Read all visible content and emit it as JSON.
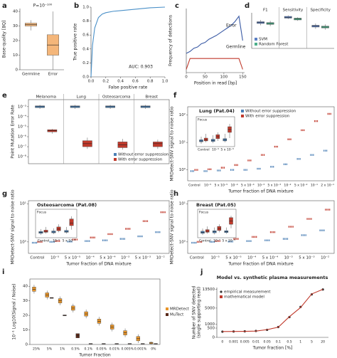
{
  "chart_data": [
    {
      "type": "box",
      "label": "a",
      "ylabel": "Base-quality [BQ]",
      "annotations": [
        "P=10⁻¹⁰⁰"
      ],
      "categories": [
        "Germline",
        "Error"
      ],
      "ylim": [
        0,
        42
      ],
      "yticks": [
        0,
        10,
        20,
        30,
        40
      ],
      "series": [
        {
          "color": "#f4b67a",
          "min": [
            27,
            0
          ],
          "q1": [
            30,
            10
          ],
          "median": [
            31,
            17
          ],
          "q3": [
            32,
            24
          ],
          "max": [
            34,
            40
          ]
        }
      ]
    },
    {
      "type": "line",
      "label": "b",
      "xlabel": "False positive rate",
      "ylabel": "True positive rate",
      "annotations": [
        "AUC: 0.903"
      ],
      "x": [
        0,
        0.02,
        0.05,
        0.1,
        0.15,
        0.2,
        0.3,
        0.4,
        0.6,
        0.8,
        1.0
      ],
      "series": [
        {
          "color": "#4a90c8",
          "values": [
            0,
            0.45,
            0.7,
            0.85,
            0.9,
            0.92,
            0.94,
            0.95,
            0.97,
            0.99,
            1.0
          ]
        }
      ],
      "xlim": [
        0,
        1
      ],
      "ylim": [
        0,
        1
      ],
      "xticks": [
        {
          "value": 0,
          "label": "0.0"
        },
        0.2,
        0.4,
        0.6,
        0.8,
        {
          "value": 1,
          "label": "1.0"
        }
      ],
      "yticks": [
        {
          "value": 0,
          "label": "0.0"
        },
        0.2,
        0.4,
        0.6,
        0.8,
        {
          "value": 1,
          "label": "1.0"
        }
      ]
    },
    {
      "type": "line",
      "label": "c",
      "xlabel": "Position in read [bp]",
      "ylabel": "Frequency of detections",
      "legend": "inline",
      "x": [
        0,
        10,
        20,
        30,
        40,
        50,
        60,
        70,
        80,
        90,
        100,
        110,
        120,
        130,
        140,
        150
      ],
      "series": [
        {
          "name": "Error",
          "color": "#3b5ba5",
          "values": [
            0.3,
            0.33,
            0.38,
            0.4,
            0.45,
            0.47,
            0.52,
            0.55,
            0.58,
            0.62,
            0.66,
            0.7,
            0.74,
            0.8,
            0.88,
            0.5
          ]
        },
        {
          "name": "Germline",
          "color": "#c0392b",
          "values": [
            0.05,
            0.22,
            0.22,
            0.22,
            0.22,
            0.22,
            0.22,
            0.22,
            0.22,
            0.22,
            0.22,
            0.22,
            0.22,
            0.22,
            0.22,
            0.05
          ]
        }
      ],
      "xlim": [
        0,
        155
      ],
      "ylim": [
        0,
        1
      ],
      "xticks": [
        0,
        50,
        100,
        150
      ]
    },
    {
      "type": "box",
      "label": "d",
      "legend": "lower left",
      "categories": [
        "F1",
        "Sensitivity",
        "Specificity"
      ],
      "ylim": [
        0.6,
        1
      ],
      "series": [
        {
          "name": "SVM",
          "color": "#5b7fc4",
          "min": [
            0.86,
            0.93,
            0.82
          ],
          "q1": [
            0.88,
            0.94,
            0.84
          ],
          "median": [
            0.89,
            0.95,
            0.85
          ],
          "q3": [
            0.9,
            0.96,
            0.86
          ],
          "max": [
            0.92,
            0.97,
            0.88
          ]
        },
        {
          "name": "Random Forest",
          "color": "#4caf8a",
          "min": [
            0.85,
            0.91,
            0.81
          ],
          "q1": [
            0.87,
            0.92,
            0.83
          ],
          "median": [
            0.88,
            0.93,
            0.84
          ],
          "q3": [
            0.89,
            0.94,
            0.85
          ],
          "max": [
            0.91,
            0.95,
            0.87
          ]
        }
      ]
    },
    {
      "type": "box",
      "label": "e",
      "ylabel": "Point Mutation Error Rate",
      "legend": "lower right",
      "yscale": "log",
      "categories": [
        "Melanoma",
        "Lung",
        "Osteosarcoma",
        "Breast"
      ],
      "ylim": [
        2e-09,
        0.005
      ],
      "yticks": [
        {
          "value": 0.001,
          "label": "10⁻³"
        },
        {
          "value": 0.0001,
          "label": "10⁻⁴"
        },
        {
          "value": 1e-05,
          "label": "10⁻⁵"
        },
        {
          "value": 1e-06,
          "label": "10⁻⁶"
        },
        {
          "value": 1e-07,
          "label": "10⁻⁷"
        },
        {
          "value": 1e-08,
          "label": "10⁻⁸"
        }
      ],
      "series": [
        {
          "name": "Without error suppression",
          "color": "#4a7fb5",
          "min": [
            0.0006,
            0.0006,
            0.0006,
            0.0006
          ],
          "q1": [
            0.0008,
            0.0008,
            0.0008,
            0.0008
          ],
          "median": [
            0.001,
            0.001,
            0.001,
            0.001
          ],
          "q3": [
            0.0012,
            0.0012,
            0.0012,
            0.0012
          ],
          "max": [
            0.0015,
            0.0015,
            0.0015,
            0.0015
          ]
        },
        {
          "name": "With error suppression",
          "color": "#c0392b",
          "min": [
            2e-06,
            6e-08,
            5e-08,
            6e-08
          ],
          "q1": [
            3e-06,
            1e-07,
            8e-08,
            1e-07
          ],
          "median": [
            4e-06,
            2e-07,
            1.5e-07,
            2e-07
          ],
          "q3": [
            5e-06,
            4e-07,
            3e-07,
            3e-07
          ],
          "max": [
            6e-06,
            8e-07,
            6e-07,
            5e-07
          ]
        }
      ]
    },
    {
      "type": "dot",
      "label": "f",
      "title": "Lung (Pat.04)",
      "xlabel": "Tumor fraction of DNA mixture",
      "ylabel": "MRDetect-SNV signal to noise ratio",
      "legend": "upper center",
      "yscale": "log",
      "categories": [
        "Control",
        "10⁻⁵",
        "5 x 10⁻⁵",
        "10⁻⁴",
        "5 x 10⁻⁴",
        "10⁻³",
        "5 x 10⁻³",
        "10⁻²",
        "5 x 10⁻²",
        "10⁻¹",
        "2 x 10⁻¹"
      ],
      "ylim": [
        0.4,
        200
      ],
      "yticks": [
        {
          "value": 1,
          "label": "10⁰"
        },
        {
          "value": 10,
          "label": "10¹"
        },
        {
          "value": 100,
          "label": "10²"
        }
      ],
      "series": [
        {
          "name": "Without error suppression",
          "color": "#4a7fb5",
          "values": [
            0.9,
            0.9,
            0.95,
            1,
            1,
            1.1,
            1.3,
            1.6,
            2.5,
            3.5,
            5
          ]
        },
        {
          "name": "With error suppression",
          "color": "#c0392b",
          "values": [
            1,
            1.05,
            1.2,
            1.5,
            2.2,
            3.5,
            7,
            13,
            28,
            60,
            110
          ]
        }
      ],
      "inset": {
        "title": "Focus",
        "categories": [
          "Control",
          "10⁻⁵",
          "5 x 10⁻⁵"
        ],
        "ylim": [
          0.85,
          1.65
        ],
        "series": [
          {
            "color": "#4a7fb5",
            "min": [
              0.9,
              0.92,
              0.95
            ],
            "q1": [
              0.97,
              0.98,
              1.0
            ],
            "median": [
              1.0,
              1.02,
              1.04
            ],
            "q3": [
              1.04,
              1.06,
              1.08
            ],
            "max": [
              1.15,
              1.2,
              1.25
            ]
          },
          {
            "color": "#c0392b",
            "min": [
              0.95,
              1.0,
              1.1
            ],
            "q1": [
              1.0,
              1.08,
              1.3
            ],
            "median": [
              1.04,
              1.15,
              1.4
            ],
            "q3": [
              1.1,
              1.22,
              1.5
            ],
            "max": [
              1.25,
              1.3,
              1.6
            ]
          }
        ]
      }
    },
    {
      "type": "dot",
      "label": "g",
      "title": "Osteosarcoma (Pat.08)",
      "xlabel": "Tumor fraction of DNA mixture",
      "ylabel": "MRDetect-SNV signal to noise ratio",
      "yscale": "log",
      "categories": [
        "Control",
        "10⁻⁵",
        "5 x 10⁻⁵",
        "10⁻⁴",
        "5 x 10⁻⁴",
        "10⁻³",
        "5 x 10⁻³",
        "10⁻²"
      ],
      "ylim": [
        0.5,
        12
      ],
      "yticks": [
        {
          "value": 1,
          "label": "10⁰"
        },
        {
          "value": 10,
          "label": "10¹"
        }
      ],
      "series": [
        {
          "color": "#4a7fb5",
          "values": [
            0.95,
            1,
            1.02,
            1.05,
            1.1,
            1.2,
            1.4,
            1.8
          ]
        },
        {
          "color": "#c0392b",
          "values": [
            1,
            1.05,
            1.15,
            1.3,
            1.6,
            2.2,
            3.5,
            6
          ]
        }
      ],
      "inset": {
        "title": "Focus",
        "categories": [
          "Control",
          "10⁻⁵",
          "5 x 10⁻⁵"
        ],
        "ylim": [
          0.85,
          1.65
        ],
        "series": [
          {
            "color": "#4a7fb5",
            "min": [
              0.9,
              0.93,
              0.95
            ],
            "q1": [
              0.96,
              0.98,
              1.0
            ],
            "median": [
              1.0,
              1.01,
              1.03
            ],
            "q3": [
              1.03,
              1.05,
              1.07
            ],
            "max": [
              1.12,
              1.15,
              1.2
            ]
          },
          {
            "color": "#c0392b",
            "min": [
              0.95,
              1.0,
              1.1
            ],
            "q1": [
              1.0,
              1.06,
              1.25
            ],
            "median": [
              1.03,
              1.12,
              1.35
            ],
            "q3": [
              1.08,
              1.2,
              1.5
            ],
            "max": [
              1.2,
              1.3,
              1.6
            ]
          }
        ]
      }
    },
    {
      "type": "dot",
      "label": "h",
      "title": "Breast (Pat.05)",
      "xlabel": "Tumor fraction of DNA mixture",
      "ylabel": "MRDetect-SNV signal to noise ratio",
      "yscale": "log",
      "categories": [
        "Control",
        "10⁻⁵",
        "5 x 10⁻⁵",
        "10⁻⁴",
        "5 x 10⁻⁴",
        "10⁻³",
        "5 x 10⁻³",
        "10⁻²"
      ],
      "ylim": [
        0.5,
        12
      ],
      "yticks": [
        {
          "value": 1,
          "label": "10⁰"
        },
        {
          "value": 10,
          "label": "10¹"
        }
      ],
      "series": [
        {
          "color": "#4a7fb5",
          "values": [
            0.95,
            1,
            1.02,
            1.05,
            1.1,
            1.2,
            1.5,
            2
          ]
        },
        {
          "color": "#c0392b",
          "values": [
            1,
            1.05,
            1.2,
            1.35,
            1.8,
            2.5,
            4,
            7
          ]
        }
      ],
      "inset": {
        "title": "Focus",
        "categories": [
          "Control",
          "10⁻⁵",
          "5 x 10⁻⁵"
        ],
        "ylim": [
          0.85,
          1.65
        ],
        "series": [
          {
            "color": "#4a7fb5",
            "min": [
              0.9,
              0.92,
              0.94
            ],
            "q1": [
              0.96,
              0.98,
              0.99
            ],
            "median": [
              1.0,
              1.02,
              1.02
            ],
            "q3": [
              1.04,
              1.06,
              1.06
            ],
            "max": [
              1.14,
              1.18,
              1.18
            ]
          },
          {
            "color": "#c0392b",
            "min": [
              0.95,
              1.0,
              1.15
            ],
            "q1": [
              1.0,
              1.07,
              1.3
            ],
            "median": [
              1.04,
              1.14,
              1.42
            ],
            "q3": [
              1.1,
              1.22,
              1.55
            ],
            "max": [
              1.22,
              1.3,
              1.62
            ]
          }
        ]
      }
    },
    {
      "type": "box",
      "label": "i",
      "xlabel": "Tumor Fraction",
      "ylabel": "10⁻¹ Log10(Signal / Noise)",
      "legend": "right",
      "categories": [
        "25%",
        "5%",
        "1%",
        "0.5%",
        "0.1%",
        "0.05%",
        "0.01%",
        "0.005%",
        "0.001%",
        "0%"
      ],
      "ylim": [
        0,
        45
      ],
      "yticks": [
        0,
        10,
        20,
        30,
        40
      ],
      "series": [
        {
          "name": "MRDetect",
          "color": "#e8952a",
          "min": [
            35,
            31,
            27,
            22,
            18,
            13,
            9,
            5,
            1,
            0
          ],
          "q1": [
            36.5,
            32.5,
            28.5,
            23.5,
            19.5,
            14.5,
            10.5,
            6.5,
            2.5,
            0.5
          ],
          "median": [
            38,
            34,
            30,
            25,
            21,
            16,
            12,
            8,
            4,
            1
          ],
          "q3": [
            39.5,
            35.5,
            31.5,
            26.5,
            22.5,
            17.5,
            13.5,
            9.5,
            5.5,
            1.5
          ],
          "max": [
            41,
            37,
            33,
            28,
            24,
            19,
            15,
            11,
            7,
            2
          ]
        },
        {
          "name": "MuTect",
          "color": "#5a2a1a",
          "q1": [
            null,
            31.7,
            19.7,
            4.5,
            0.3,
            0.3,
            0.3,
            0.3,
            0.3,
            0.3
          ],
          "median": [
            null,
            32,
            20,
            6,
            0.5,
            0.5,
            0.5,
            0.5,
            0.5,
            0.5
          ],
          "q3": [
            null,
            32.3,
            20.3,
            7.5,
            0.7,
            0.7,
            0.7,
            0.7,
            0.7,
            0.7
          ]
        }
      ]
    },
    {
      "type": "line",
      "label": "j",
      "title": "Model vs. synthetic plasma measurements",
      "xlabel": "Tumor fraction [%]",
      "ylabel": [
        "Number of SNV detected",
        "(single supporting read)"
      ],
      "legend": "upper left",
      "yscale": "sqrt",
      "categories": [
        "0",
        "0.001",
        "0.005",
        "0.01",
        "0.05",
        "0.1",
        "0.5",
        "1",
        "5",
        "20"
      ],
      "ylim": [
        0,
        14500
      ],
      "yticks": [
        0,
        500,
        1000,
        5000,
        13500
      ],
      "series": [
        {
          "name": "empirical measurement",
          "color": "#333333",
          "markers": true,
          "values": [
            190,
            200,
            215,
            240,
            330,
            620,
            2400,
            5400,
            10800,
            13400
          ]
        },
        {
          "name": "mathematical model",
          "color": "#c0392b",
          "values": [
            200,
            205,
            210,
            230,
            350,
            600,
            2500,
            5200,
            11000,
            13500
          ]
        }
      ]
    }
  ]
}
